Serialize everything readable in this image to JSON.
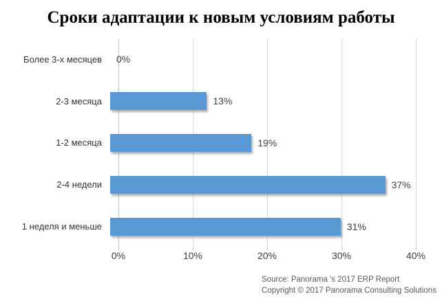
{
  "chart_data": {
    "type": "bar",
    "orientation": "horizontal",
    "title": "Сроки адаптации к новым условиям работы",
    "categories": [
      "Более 3-х месяцев",
      "2-3 месяца",
      "1-2 месяца",
      "2-4 недели",
      "1 неделя и меньше"
    ],
    "values": [
      0,
      13,
      19,
      37,
      31
    ],
    "value_labels": [
      "0%",
      "13%",
      "19%",
      "37%",
      "31%"
    ],
    "xlim": [
      0,
      40
    ],
    "x_tick_values": [
      0,
      10,
      20,
      30,
      40
    ],
    "x_tick_labels": [
      "0%",
      "10%",
      "20%",
      "30%",
      "40%"
    ],
    "grid": "vertical",
    "legend": "none",
    "bar_color": "#5898d4",
    "gridline_color": "#d6d6d6",
    "axis_line_color": "#c0c0c0"
  },
  "footer": {
    "source_line": "Source: Panorama 's 2017 ERP Report",
    "copyright_line": "Copyright © 2017 Panorama Consulting Solutions"
  }
}
